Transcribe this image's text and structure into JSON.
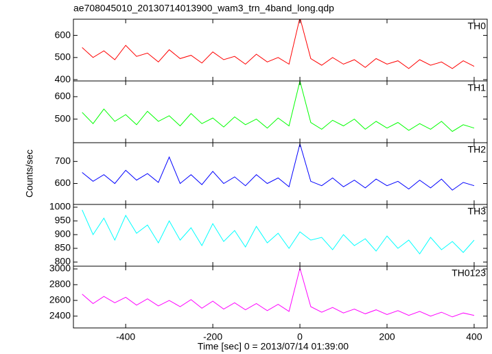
{
  "title": "ae708045010_20130714013900_wam3_trn_4band_long.qdp",
  "ylabel": "Counts/sec",
  "xlabel": "Time [sec] 0 = 2013/07/14 01:39:00",
  "chart_data": [
    {
      "type": "line",
      "label": "TH0",
      "color": "#ff0000",
      "x": [
        -500,
        -475,
        -450,
        -425,
        -400,
        -375,
        -350,
        -325,
        -300,
        -275,
        -250,
        -225,
        -200,
        -175,
        -150,
        -125,
        -100,
        -75,
        -50,
        -25,
        0,
        25,
        50,
        75,
        100,
        125,
        150,
        175,
        200,
        225,
        250,
        275,
        300,
        325,
        350,
        375,
        400
      ],
      "values": [
        545,
        500,
        530,
        490,
        555,
        505,
        520,
        480,
        535,
        495,
        510,
        475,
        525,
        490,
        505,
        470,
        515,
        480,
        500,
        470,
        680,
        495,
        465,
        500,
        470,
        490,
        455,
        495,
        470,
        485,
        450,
        490,
        465,
        480,
        450,
        485,
        460
      ],
      "xlim": [
        -520,
        430
      ],
      "xticks": [
        -400,
        -200,
        0,
        200,
        400
      ],
      "ylim": [
        394,
        673
      ],
      "yticks": [
        400,
        500,
        600
      ]
    },
    {
      "type": "line",
      "label": "TH1",
      "color": "#00ff00",
      "x": [
        -500,
        -475,
        -450,
        -425,
        -400,
        -375,
        -350,
        -325,
        -300,
        -275,
        -250,
        -225,
        -200,
        -175,
        -150,
        -125,
        -100,
        -75,
        -50,
        -25,
        0,
        25,
        50,
        75,
        100,
        125,
        150,
        175,
        200,
        225,
        250,
        275,
        300,
        325,
        350,
        375,
        400
      ],
      "values": [
        530,
        480,
        545,
        490,
        520,
        475,
        535,
        490,
        515,
        470,
        525,
        480,
        505,
        465,
        510,
        475,
        500,
        460,
        505,
        470,
        670,
        485,
        455,
        495,
        470,
        500,
        455,
        490,
        460,
        485,
        450,
        480,
        455,
        490,
        445,
        475,
        460
      ],
      "xlim": [
        -520,
        430
      ],
      "xticks": [
        -400,
        -200,
        0,
        200,
        400
      ],
      "ylim": [
        395,
        670
      ],
      "yticks": [
        500,
        600
      ]
    },
    {
      "type": "line",
      "label": "TH2",
      "color": "#0000ff",
      "x": [
        -500,
        -475,
        -450,
        -425,
        -400,
        -375,
        -350,
        -325,
        -300,
        -275,
        -250,
        -225,
        -200,
        -175,
        -150,
        -125,
        -100,
        -75,
        -50,
        -25,
        0,
        25,
        50,
        75,
        100,
        125,
        150,
        175,
        200,
        225,
        250,
        275,
        300,
        325,
        350,
        375,
        400
      ],
      "values": [
        650,
        610,
        640,
        600,
        660,
        615,
        645,
        605,
        720,
        600,
        640,
        595,
        655,
        600,
        630,
        590,
        640,
        600,
        625,
        585,
        780,
        610,
        590,
        625,
        585,
        615,
        580,
        620,
        590,
        610,
        575,
        615,
        580,
        620,
        570,
        605,
        590
      ],
      "xlim": [
        -520,
        430
      ],
      "xticks": [
        -400,
        -200,
        0,
        200,
        400
      ],
      "ylim": [
        505,
        785
      ],
      "yticks": [
        600,
        700
      ]
    },
    {
      "type": "line",
      "label": "TH3",
      "color": "#00ffff",
      "x": [
        -500,
        -475,
        -450,
        -425,
        -400,
        -375,
        -350,
        -325,
        -300,
        -275,
        -250,
        -225,
        -200,
        -175,
        -150,
        -125,
        -100,
        -75,
        -50,
        -25,
        0,
        25,
        50,
        75,
        100,
        125,
        150,
        175,
        200,
        225,
        250,
        275,
        300,
        325,
        350,
        375,
        400
      ],
      "values": [
        990,
        900,
        960,
        880,
        970,
        905,
        935,
        870,
        950,
        880,
        925,
        860,
        940,
        875,
        915,
        855,
        930,
        870,
        905,
        850,
        910,
        880,
        890,
        845,
        900,
        860,
        885,
        840,
        895,
        850,
        880,
        830,
        890,
        845,
        875,
        835,
        880
      ],
      "xlim": [
        -520,
        430
      ],
      "xticks": [
        -400,
        -200,
        0,
        200,
        400
      ],
      "ylim": [
        785,
        1010
      ],
      "yticks": [
        800,
        850,
        900,
        950,
        1000
      ]
    },
    {
      "type": "line",
      "label": "TH0123",
      "color": "#ff00ff",
      "x": [
        -500,
        -475,
        -450,
        -425,
        -400,
        -375,
        -350,
        -325,
        -300,
        -275,
        -250,
        -225,
        -200,
        -175,
        -150,
        -125,
        -100,
        -75,
        -50,
        -25,
        0,
        25,
        50,
        75,
        100,
        125,
        150,
        175,
        200,
        225,
        250,
        275,
        300,
        325,
        350,
        375,
        400
      ],
      "values": [
        2680,
        2560,
        2650,
        2570,
        2640,
        2540,
        2620,
        2530,
        2600,
        2520,
        2610,
        2500,
        2590,
        2490,
        2570,
        2480,
        2560,
        2470,
        2550,
        2460,
        3010,
        2520,
        2450,
        2510,
        2440,
        2490,
        2430,
        2480,
        2420,
        2470,
        2410,
        2460,
        2400,
        2450,
        2390,
        2440,
        2410
      ],
      "xlim": [
        -520,
        430
      ],
      "xticks": [
        -400,
        -200,
        0,
        200,
        400
      ],
      "ylim": [
        2250,
        3035
      ],
      "yticks": [
        2400,
        2600,
        2800,
        3000
      ]
    }
  ]
}
